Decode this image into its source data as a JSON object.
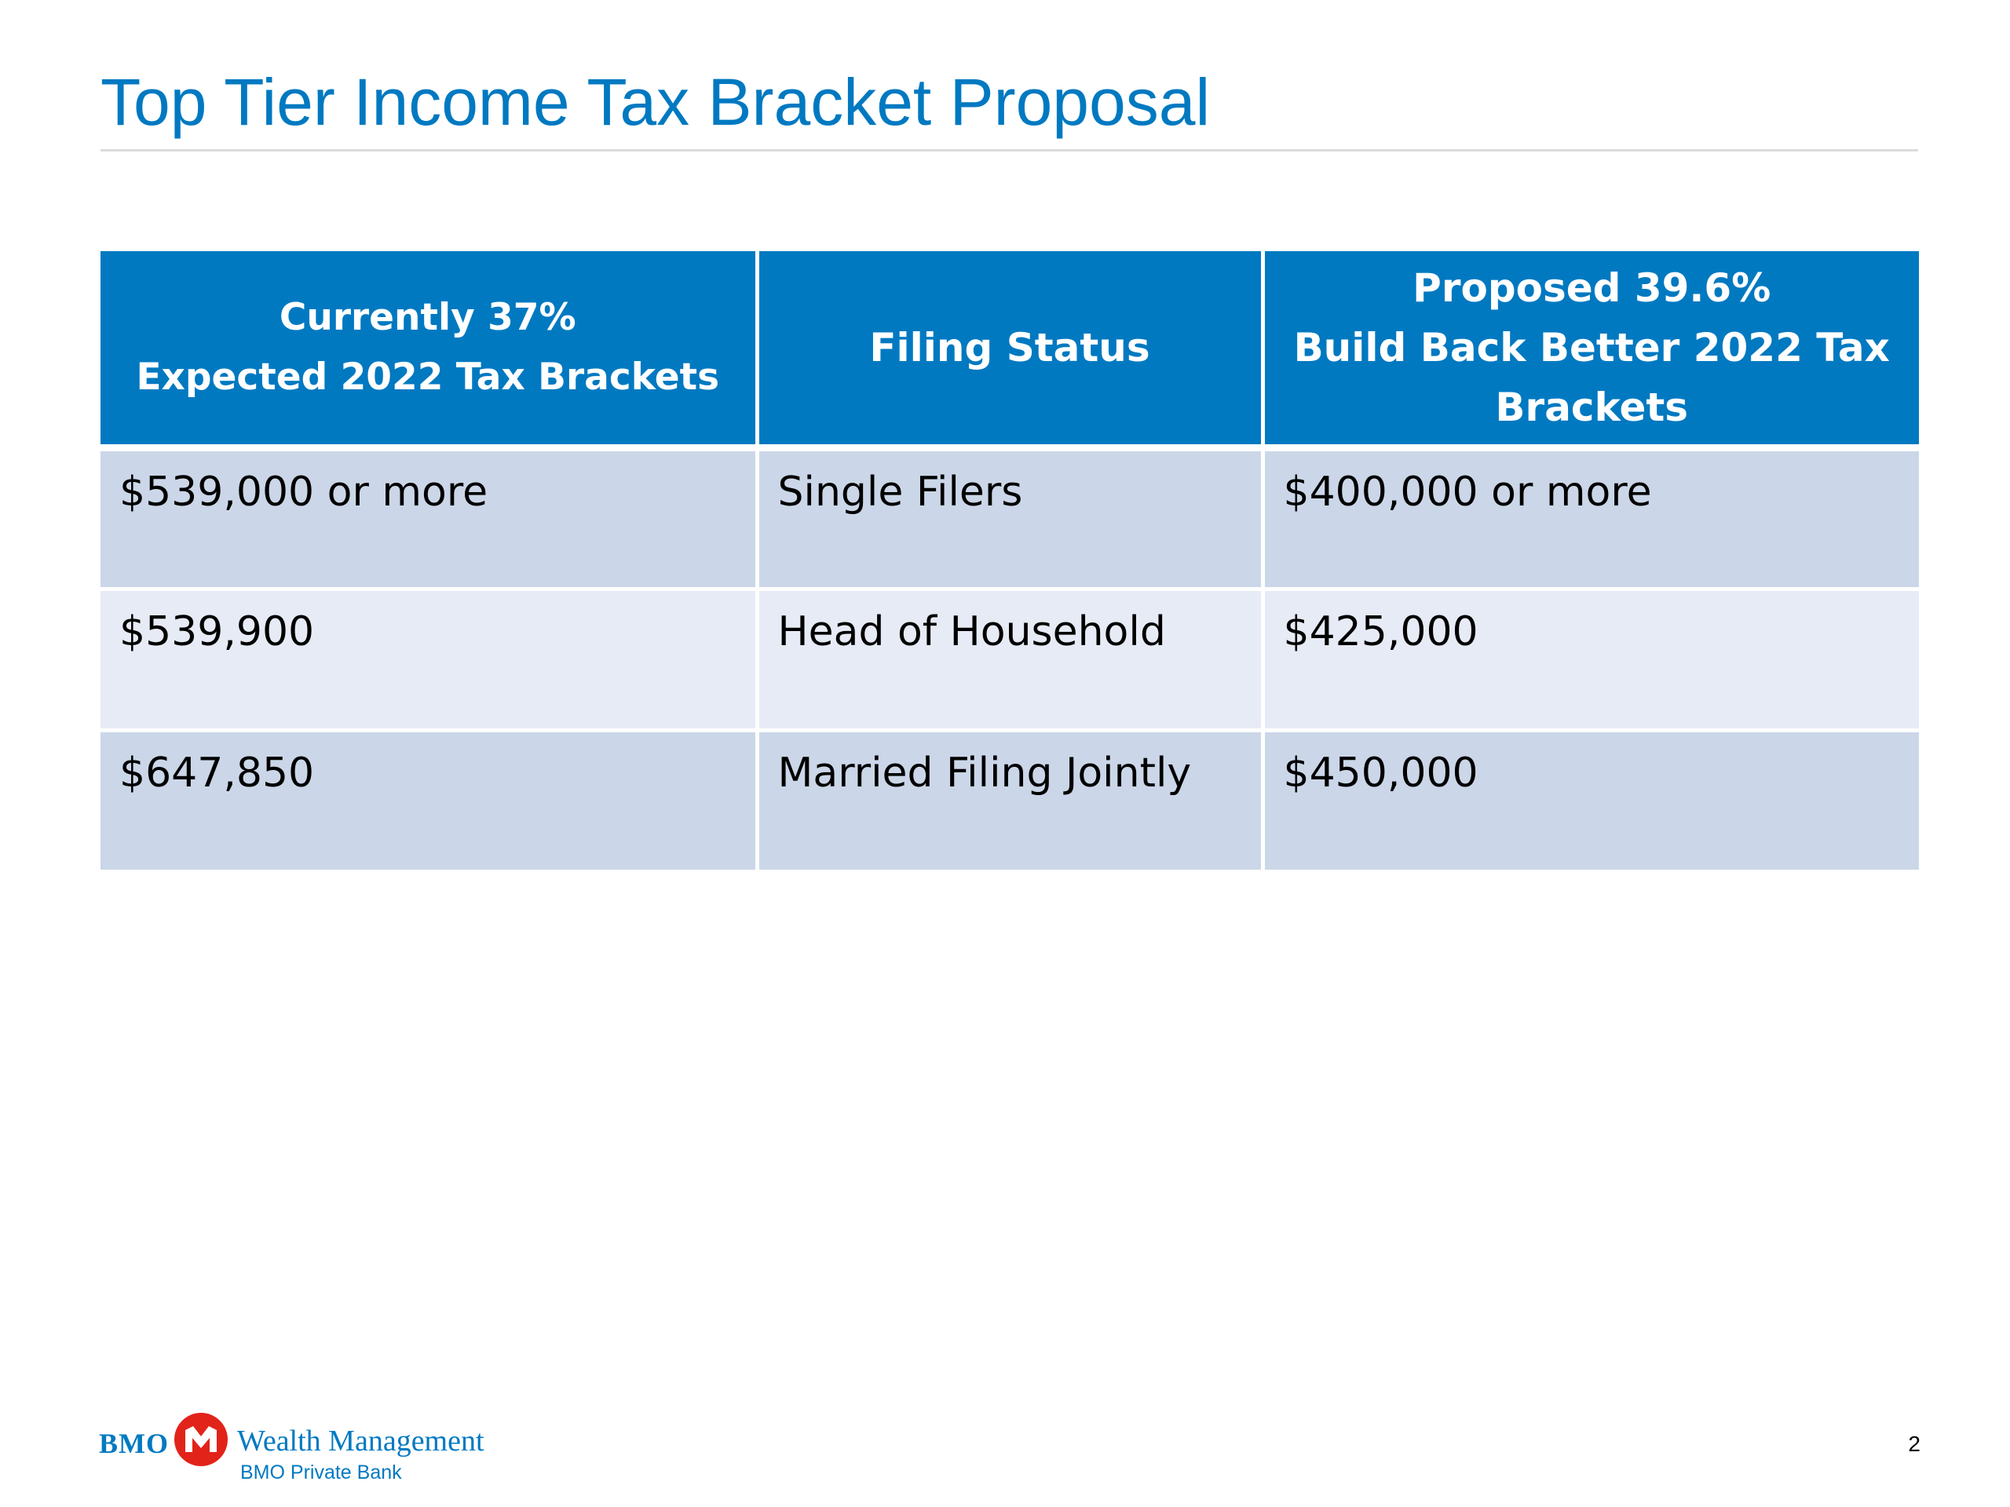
{
  "slide": {
    "title": "Top Tier Income Tax Bracket Proposal",
    "page_number": "2"
  },
  "table": {
    "headers": [
      {
        "line1": "Currently 37%",
        "line2": "Expected 2022 Tax Brackets"
      },
      {
        "line1": "Filing Status"
      },
      {
        "line1": "Proposed 39.6%",
        "line2": "Build Back Better 2022 Tax Brackets"
      }
    ],
    "rows": [
      [
        "$539,000 or more",
        "Single Filers",
        "$400,000 or more"
      ],
      [
        "$539,900",
        "Head of Household",
        "$425,000"
      ],
      [
        "$647,850",
        "Married Filing Jointly",
        "$450,000"
      ]
    ]
  },
  "footer": {
    "logo_bmo": "BMO",
    "logo_wealth": "Wealth Management",
    "logo_sub": "BMO Private Bank"
  },
  "colors": {
    "accent": "#0079c1",
    "header_bg": "#0079c1",
    "row_odd": "#cbd7e8",
    "row_even": "#e7ebf5",
    "logo_red": "#e2231a"
  },
  "icons": {
    "logo": "bmo-roundel-icon"
  }
}
